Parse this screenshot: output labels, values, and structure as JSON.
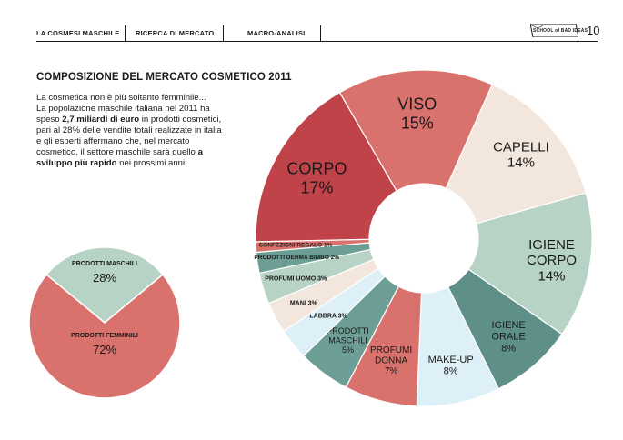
{
  "header": {
    "nav": [
      "LA COSMESI MASCHILE",
      "RICERCA DI MERCATO",
      "MACRO-ANALISI"
    ],
    "logo": "SCHOOL of BAD IDEAS",
    "page_number": "10"
  },
  "title": "COMPOSIZIONE DEL MERCATO COSMETICO 2011",
  "intro": {
    "line1": "La cosmetica non è più soltanto femminile...",
    "p1": "La popolazione maschile italiana nel 2011 ha speso ",
    "b1": "2,7 miliardi di euro",
    "p2": " in prodotti cosmetici, pari al 28% delle vendite totali realizzate in italia e gli esperti affermano che, nel mercato cosmetico, il settore maschile sarà quello ",
    "b2": "a sviluppo più rapido",
    "p3": " nei prossimi anni."
  },
  "colors": {
    "dark_red": "#c0434a",
    "red": "#d9726d",
    "cream": "#f3e6dd",
    "mint": "#b7d3c6",
    "teal": "#6c9e96",
    "light_blue": "#ddeff7",
    "teal_mid": "#5f8f89"
  },
  "chart_data": [
    {
      "type": "pie",
      "title": "",
      "series": [
        {
          "name": "PRODOTTI MASCHILI",
          "value": 28,
          "label": "28%"
        },
        {
          "name": "PRODOTTI FEMMINILI",
          "value": 72,
          "label": "72%"
        }
      ]
    },
    {
      "type": "pie",
      "title": "",
      "series": [
        {
          "name": "VISO",
          "value": 15,
          "label": "15%"
        },
        {
          "name": "CAPELLI",
          "value": 14,
          "label": "14%"
        },
        {
          "name": "IGIENE CORPO",
          "value": 14,
          "label": "14%"
        },
        {
          "name": "IGIENE ORALE",
          "value": 8,
          "label": "8%"
        },
        {
          "name": "MAKE-UP",
          "value": 8,
          "label": "8%"
        },
        {
          "name": "PROFUMI DONNA",
          "value": 7,
          "label": "7%"
        },
        {
          "name": "PRODOTTI MASCHILI",
          "value": 5,
          "label": "5%"
        },
        {
          "name": "LABBRA",
          "value": 3,
          "label": "3%"
        },
        {
          "name": "MANI",
          "value": 3,
          "label": "3%"
        },
        {
          "name": "PROFUMI UOMO",
          "value": 3,
          "label": "3%"
        },
        {
          "name": "PRODOTTI DERMA BIMBO",
          "value": 2,
          "label": "2%"
        },
        {
          "name": "CONFEZIONI REGALO",
          "value": 1,
          "label": "1%"
        },
        {
          "name": "CORPO",
          "value": 17,
          "label": "17%"
        }
      ]
    }
  ]
}
